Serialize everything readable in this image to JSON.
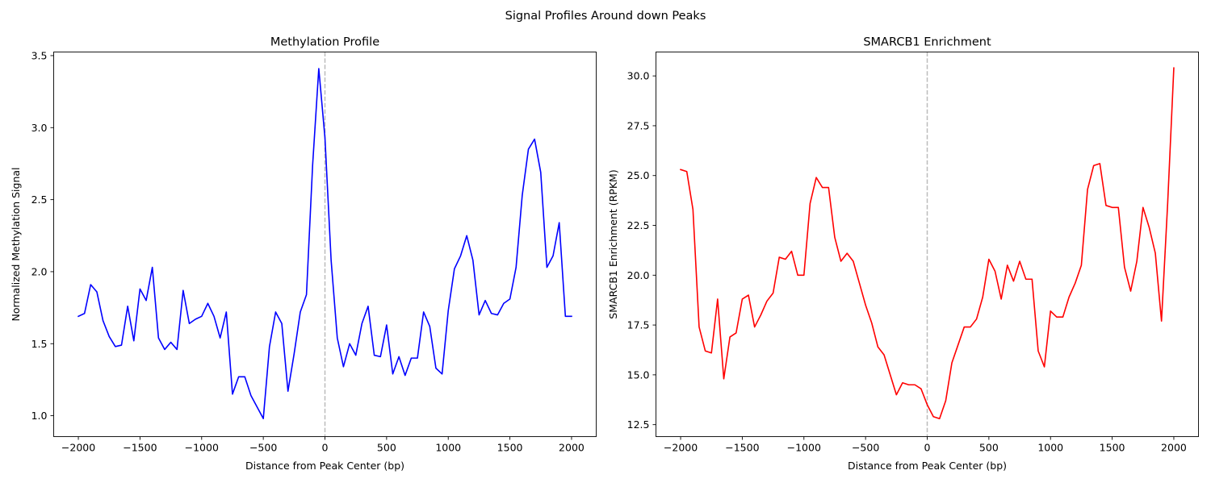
{
  "figure": {
    "suptitle": "Signal Profiles Around down Peaks"
  },
  "chart_data": [
    {
      "type": "line",
      "title": "Methylation Profile",
      "xlabel": "Distance from Peak Center (bp)",
      "ylabel": "Normalized Methylation Signal",
      "xlim": [
        -2200,
        2200
      ],
      "ylim": [
        0.855,
        3.525
      ],
      "xticks": [
        -2000,
        -1500,
        -1000,
        -500,
        0,
        500,
        1000,
        1500,
        2000
      ],
      "yticks": [
        1.0,
        1.5,
        2.0,
        2.5,
        3.0,
        3.5
      ],
      "xtick_labels": [
        "−2000",
        "−1500",
        "−1000",
        "−500",
        "0",
        "500",
        "1000",
        "1500",
        "2000"
      ],
      "ytick_labels": [
        "1.0",
        "1.5",
        "2.0",
        "2.5",
        "3.0",
        "3.5"
      ],
      "vline": {
        "x": 0,
        "style": "dashed",
        "color": "#bbbbbb"
      },
      "grid": false,
      "series": [
        {
          "color": "#0000ff",
          "x": [
            -2000,
            -1950,
            -1900,
            -1850,
            -1800,
            -1750,
            -1700,
            -1650,
            -1600,
            -1550,
            -1500,
            -1450,
            -1400,
            -1350,
            -1300,
            -1250,
            -1200,
            -1150,
            -1100,
            -1050,
            -1000,
            -950,
            -900,
            -850,
            -800,
            -750,
            -700,
            -650,
            -600,
            -550,
            -500,
            -450,
            -400,
            -350,
            -300,
            -250,
            -200,
            -150,
            -100,
            -50,
            0,
            50,
            100,
            150,
            200,
            250,
            300,
            350,
            400,
            450,
            500,
            550,
            600,
            650,
            700,
            750,
            800,
            850,
            900,
            950,
            1000,
            1050,
            1100,
            1150,
            1200,
            1250,
            1300,
            1350,
            1400,
            1450,
            1500,
            1550,
            1600,
            1650,
            1700,
            1750,
            1800,
            1850,
            1900,
            1950,
            2000
          ],
          "values": [
            1.69,
            1.71,
            1.91,
            1.86,
            1.66,
            1.55,
            1.48,
            1.49,
            1.76,
            1.52,
            1.88,
            1.8,
            2.03,
            1.54,
            1.46,
            1.51,
            1.46,
            1.87,
            1.64,
            1.67,
            1.69,
            1.78,
            1.69,
            1.54,
            1.72,
            1.15,
            1.27,
            1.27,
            1.14,
            1.06,
            0.98,
            1.48,
            1.72,
            1.64,
            1.17,
            1.43,
            1.72,
            1.84,
            2.74,
            3.41,
            2.93,
            2.08,
            1.54,
            1.34,
            1.5,
            1.42,
            1.64,
            1.76,
            1.42,
            1.41,
            1.63,
            1.29,
            1.41,
            1.28,
            1.4,
            1.4,
            1.72,
            1.62,
            1.33,
            1.29,
            1.73,
            2.02,
            2.11,
            2.25,
            2.08,
            1.7,
            1.8,
            1.71,
            1.7,
            1.78,
            1.81,
            2.03,
            2.53,
            2.85,
            2.92,
            2.69,
            2.03,
            2.11,
            2.34,
            1.69,
            1.69
          ]
        }
      ]
    },
    {
      "type": "line",
      "title": "SMARCB1 Enrichment",
      "xlabel": "Distance from Peak Center (bp)",
      "ylabel": "SMARCB1 Enrichment (RPKM)",
      "xlim": [
        -2200,
        2200
      ],
      "ylim": [
        11.9,
        31.2
      ],
      "xticks": [
        -2000,
        -1500,
        -1000,
        -500,
        0,
        500,
        1000,
        1500,
        2000
      ],
      "yticks": [
        12.5,
        15.0,
        17.5,
        20.0,
        22.5,
        25.0,
        27.5,
        30.0
      ],
      "xtick_labels": [
        "−2000",
        "−1500",
        "−1000",
        "−500",
        "0",
        "500",
        "1000",
        "1500",
        "2000"
      ],
      "ytick_labels": [
        "12.5",
        "15.0",
        "17.5",
        "20.0",
        "22.5",
        "25.0",
        "27.5",
        "30.0"
      ],
      "vline": {
        "x": 0,
        "style": "dashed",
        "color": "#bbbbbb"
      },
      "grid": false,
      "series": [
        {
          "color": "#ff0000",
          "x": [
            -2000,
            -1950,
            -1900,
            -1850,
            -1800,
            -1750,
            -1700,
            -1650,
            -1600,
            -1550,
            -1500,
            -1450,
            -1400,
            -1350,
            -1300,
            -1250,
            -1200,
            -1150,
            -1100,
            -1050,
            -1000,
            -950,
            -900,
            -850,
            -800,
            -750,
            -700,
            -650,
            -600,
            -550,
            -500,
            -450,
            -400,
            -350,
            -300,
            -250,
            -200,
            -150,
            -100,
            -50,
            0,
            50,
            100,
            150,
            200,
            250,
            300,
            350,
            400,
            450,
            500,
            550,
            600,
            650,
            700,
            750,
            800,
            850,
            900,
            950,
            1000,
            1050,
            1100,
            1150,
            1200,
            1250,
            1300,
            1350,
            1400,
            1450,
            1500,
            1550,
            1600,
            1650,
            1700,
            1750,
            1800,
            1850,
            1900,
            1950,
            2000
          ],
          "values": [
            25.3,
            25.2,
            23.3,
            17.4,
            16.2,
            16.1,
            18.8,
            14.8,
            16.9,
            17.1,
            18.8,
            19.0,
            17.4,
            18.0,
            18.7,
            19.1,
            20.9,
            20.8,
            21.2,
            20.0,
            20.0,
            23.6,
            24.9,
            24.4,
            24.4,
            21.9,
            20.7,
            21.1,
            20.7,
            19.6,
            18.5,
            17.6,
            16.4,
            16.0,
            15.0,
            14.0,
            14.6,
            14.5,
            14.5,
            14.3,
            13.5,
            12.9,
            12.8,
            13.7,
            15.6,
            16.5,
            17.4,
            17.4,
            17.8,
            18.9,
            20.8,
            20.2,
            18.8,
            20.5,
            19.7,
            20.7,
            19.8,
            19.8,
            16.2,
            15.4,
            18.2,
            17.9,
            17.9,
            18.9,
            19.6,
            20.5,
            24.3,
            25.5,
            25.6,
            23.5,
            23.4,
            23.4,
            20.4,
            19.2,
            20.7,
            23.4,
            22.4,
            21.1,
            17.7,
            23.6,
            30.4
          ]
        }
      ]
    }
  ]
}
